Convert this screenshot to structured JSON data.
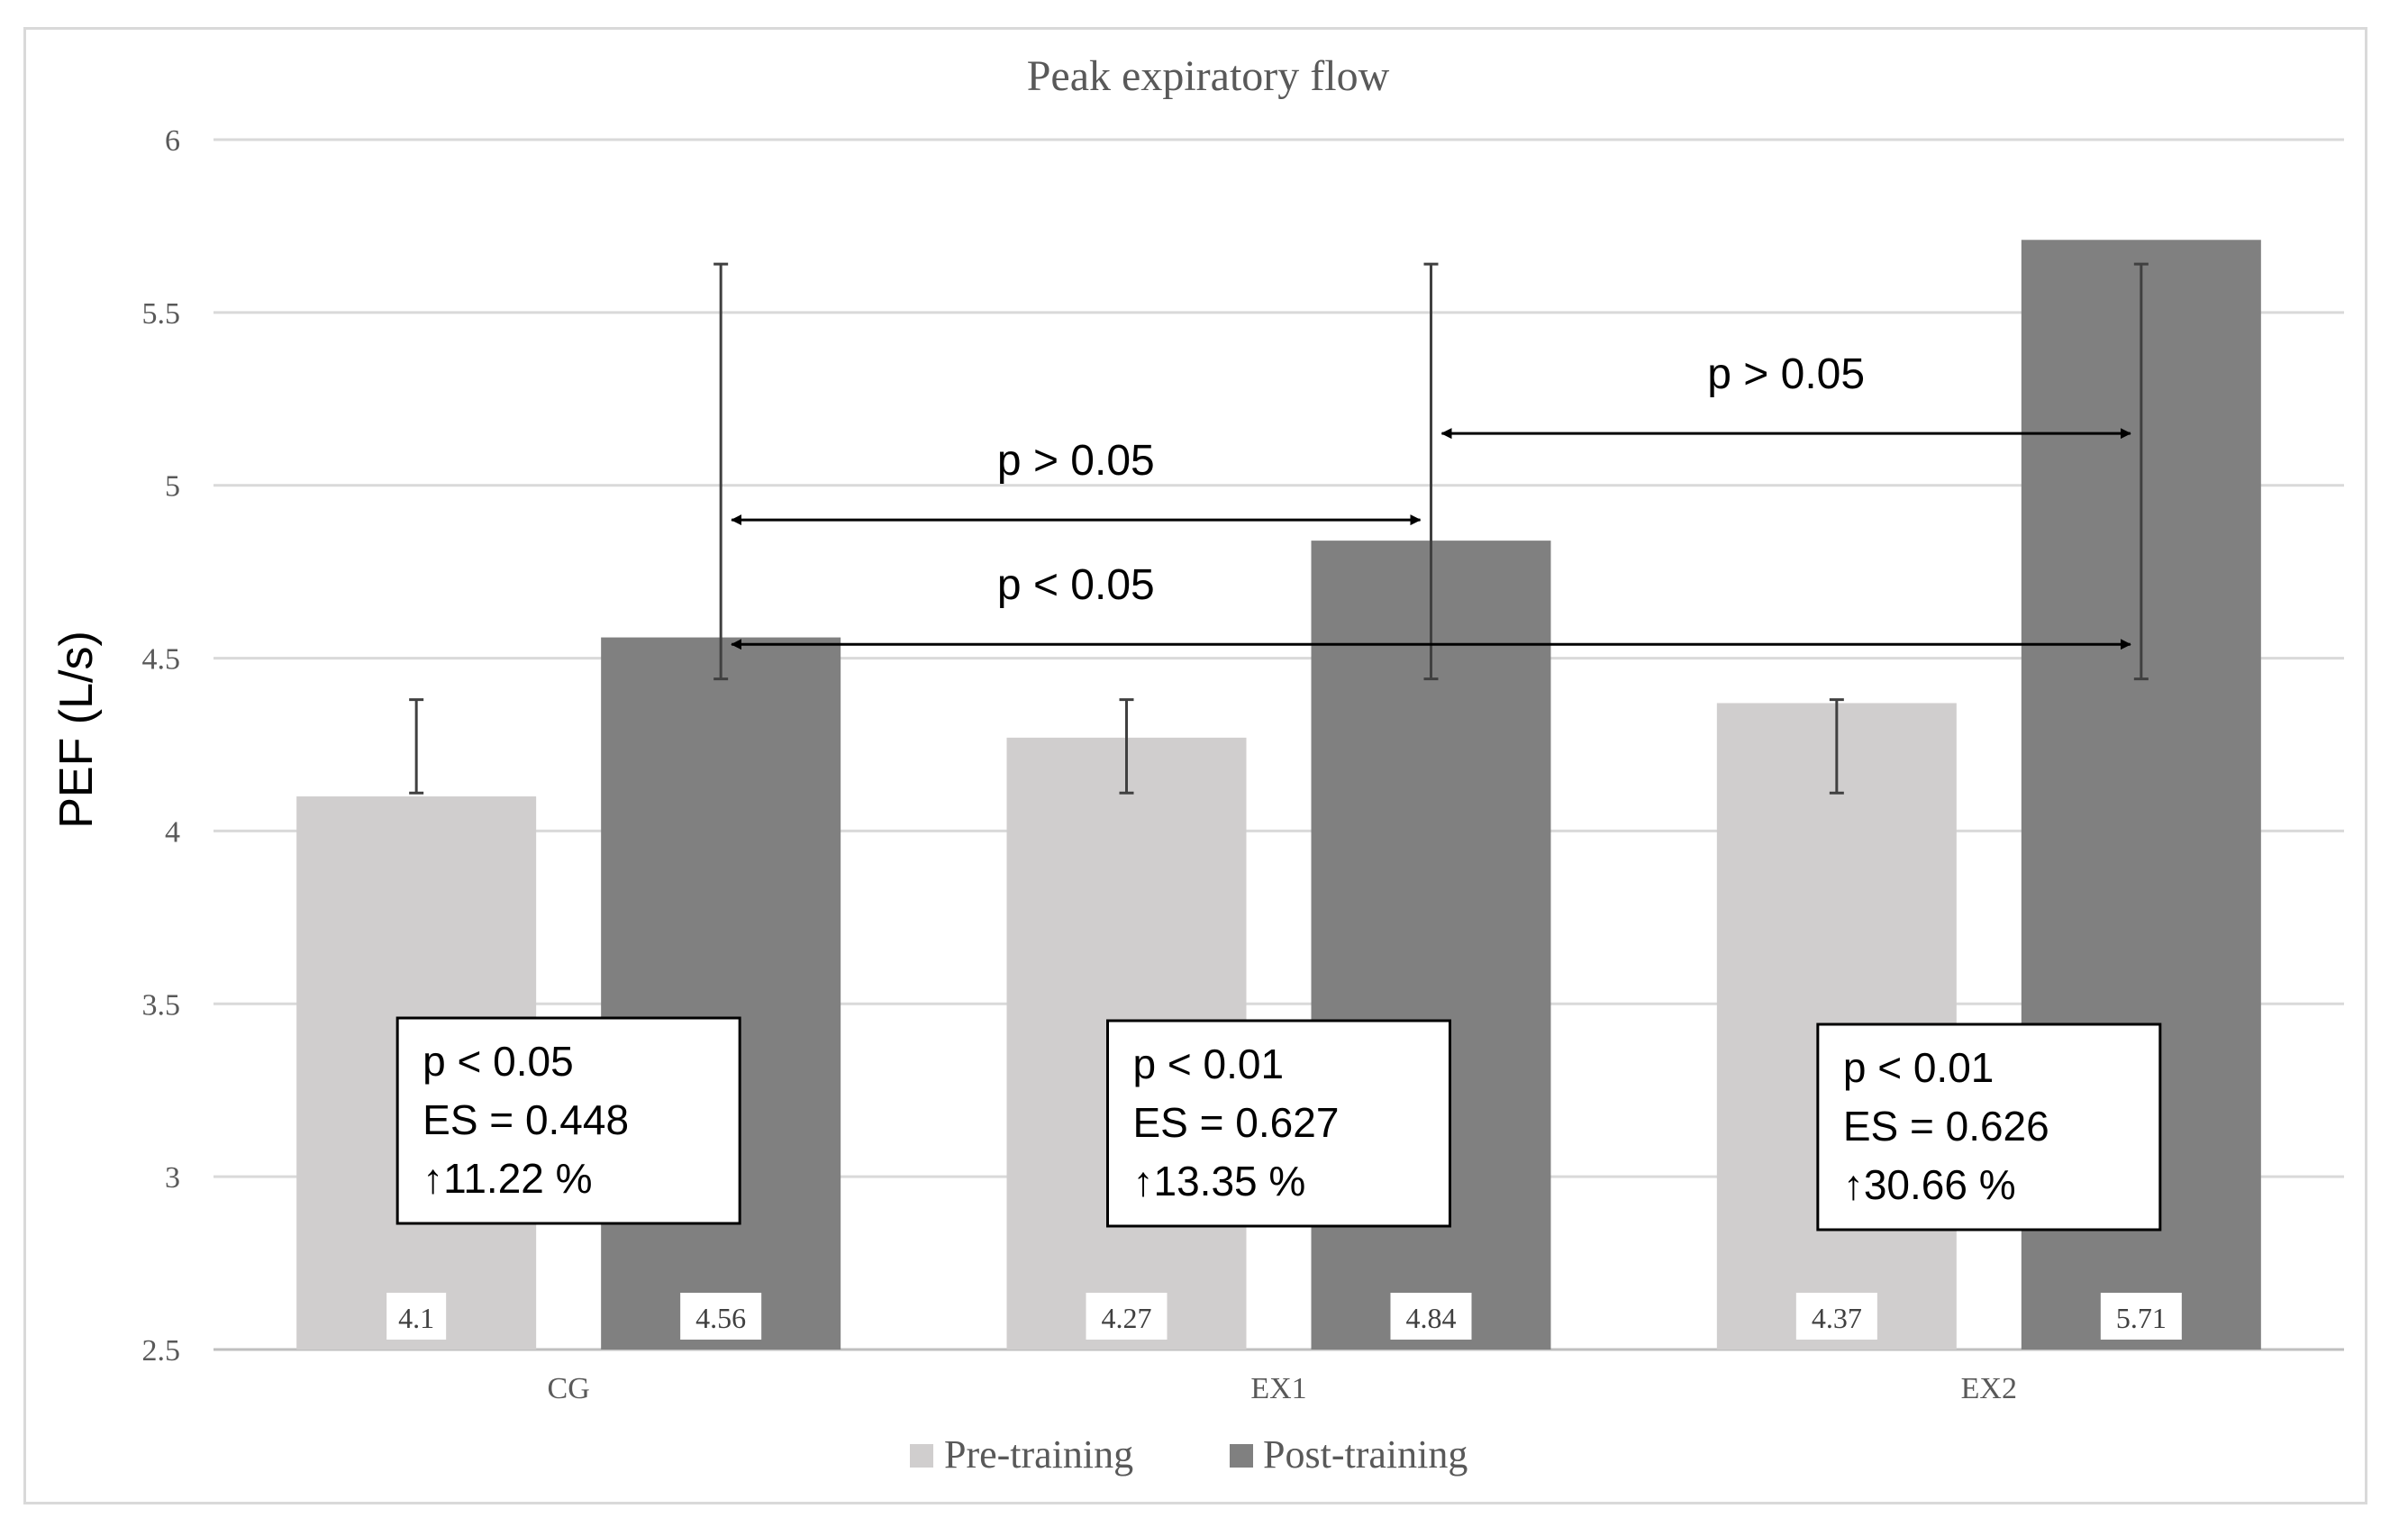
{
  "chart_data": {
    "type": "bar",
    "title": "Peak expiratory flow",
    "xlabel": "",
    "ylabel": "PEF (L/s)",
    "ylim": [
      2.5,
      6
    ],
    "yticks": [
      2.5,
      3,
      3.5,
      4,
      4.5,
      5,
      5.5,
      6
    ],
    "ytick_labels": [
      "2.5",
      "3",
      "3.5",
      "4",
      "4.5",
      "5",
      "5.5",
      "6"
    ],
    "grid": true,
    "legend_position": "bottom-center",
    "categories": [
      "CG",
      "EX1",
      "EX2"
    ],
    "series": [
      {
        "name": "Pre-training",
        "color": "#d0cece",
        "values": [
          4.1,
          4.27,
          4.37
        ],
        "value_labels": [
          "4.1",
          "4.27",
          "4.37"
        ],
        "error_upper": [
          4.38,
          4.38,
          4.38
        ],
        "error_lower": [
          4.11,
          4.11,
          4.11
        ]
      },
      {
        "name": "Post-training",
        "color": "#808080",
        "values": [
          4.56,
          4.84,
          5.71
        ],
        "value_labels": [
          "4.56",
          "4.84",
          "5.71"
        ],
        "error_upper": [
          5.64,
          5.64,
          5.64
        ],
        "error_lower": [
          4.44,
          4.44,
          4.44
        ]
      }
    ],
    "stat_boxes": [
      {
        "category": "CG",
        "lines": [
          "p < 0.05",
          "ES = 0.448",
          "↑11.22 %"
        ]
      },
      {
        "category": "EX1",
        "lines": [
          "p < 0.01",
          "ES = 0.627",
          "↑13.35 %"
        ]
      },
      {
        "category": "EX2",
        "lines": [
          "p < 0.01",
          "ES = 0.626",
          "↑30.66 %"
        ]
      }
    ],
    "comparisons": [
      {
        "from": "CG",
        "to": "EX1",
        "series": "Post-training",
        "label": "p > 0.05",
        "y": 4.9
      },
      {
        "from": "EX1",
        "to": "EX2",
        "series": "Post-training",
        "label": "p > 0.05",
        "y": 5.15
      },
      {
        "from": "CG",
        "to": "EX2",
        "series": "Post-training",
        "label": "p < 0.05",
        "y": 4.54
      }
    ]
  }
}
